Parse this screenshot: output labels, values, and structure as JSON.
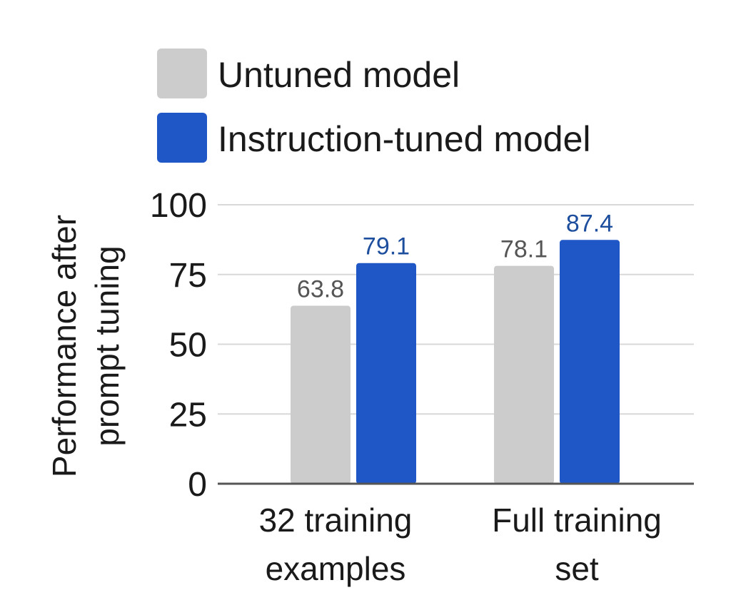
{
  "chart_data": {
    "type": "bar",
    "title": "",
    "xlabel": "",
    "ylabel": [
      "Performance after",
      "prompt tuning"
    ],
    "categories": [
      [
        "32 training",
        "examples"
      ],
      [
        "Full training",
        "set"
      ]
    ],
    "series": [
      {
        "name": "Untuned model",
        "values": [
          63.8,
          78.1
        ],
        "labels": [
          "63.8",
          "78.1"
        ],
        "color": "#cccccc",
        "label_color": "#555555"
      },
      {
        "name": "Instruction-tuned model",
        "values": [
          79.1,
          87.4
        ],
        "labels": [
          "79.1",
          "87.4"
        ],
        "color": "#2057c6",
        "label_color": "#1d4e9e"
      }
    ],
    "ylim": [
      0,
      100
    ],
    "yticks": [
      0,
      25,
      50,
      75,
      100
    ],
    "ytick_labels": [
      "0",
      "25",
      "50",
      "75",
      "100"
    ],
    "grid": true,
    "legend": "top"
  }
}
